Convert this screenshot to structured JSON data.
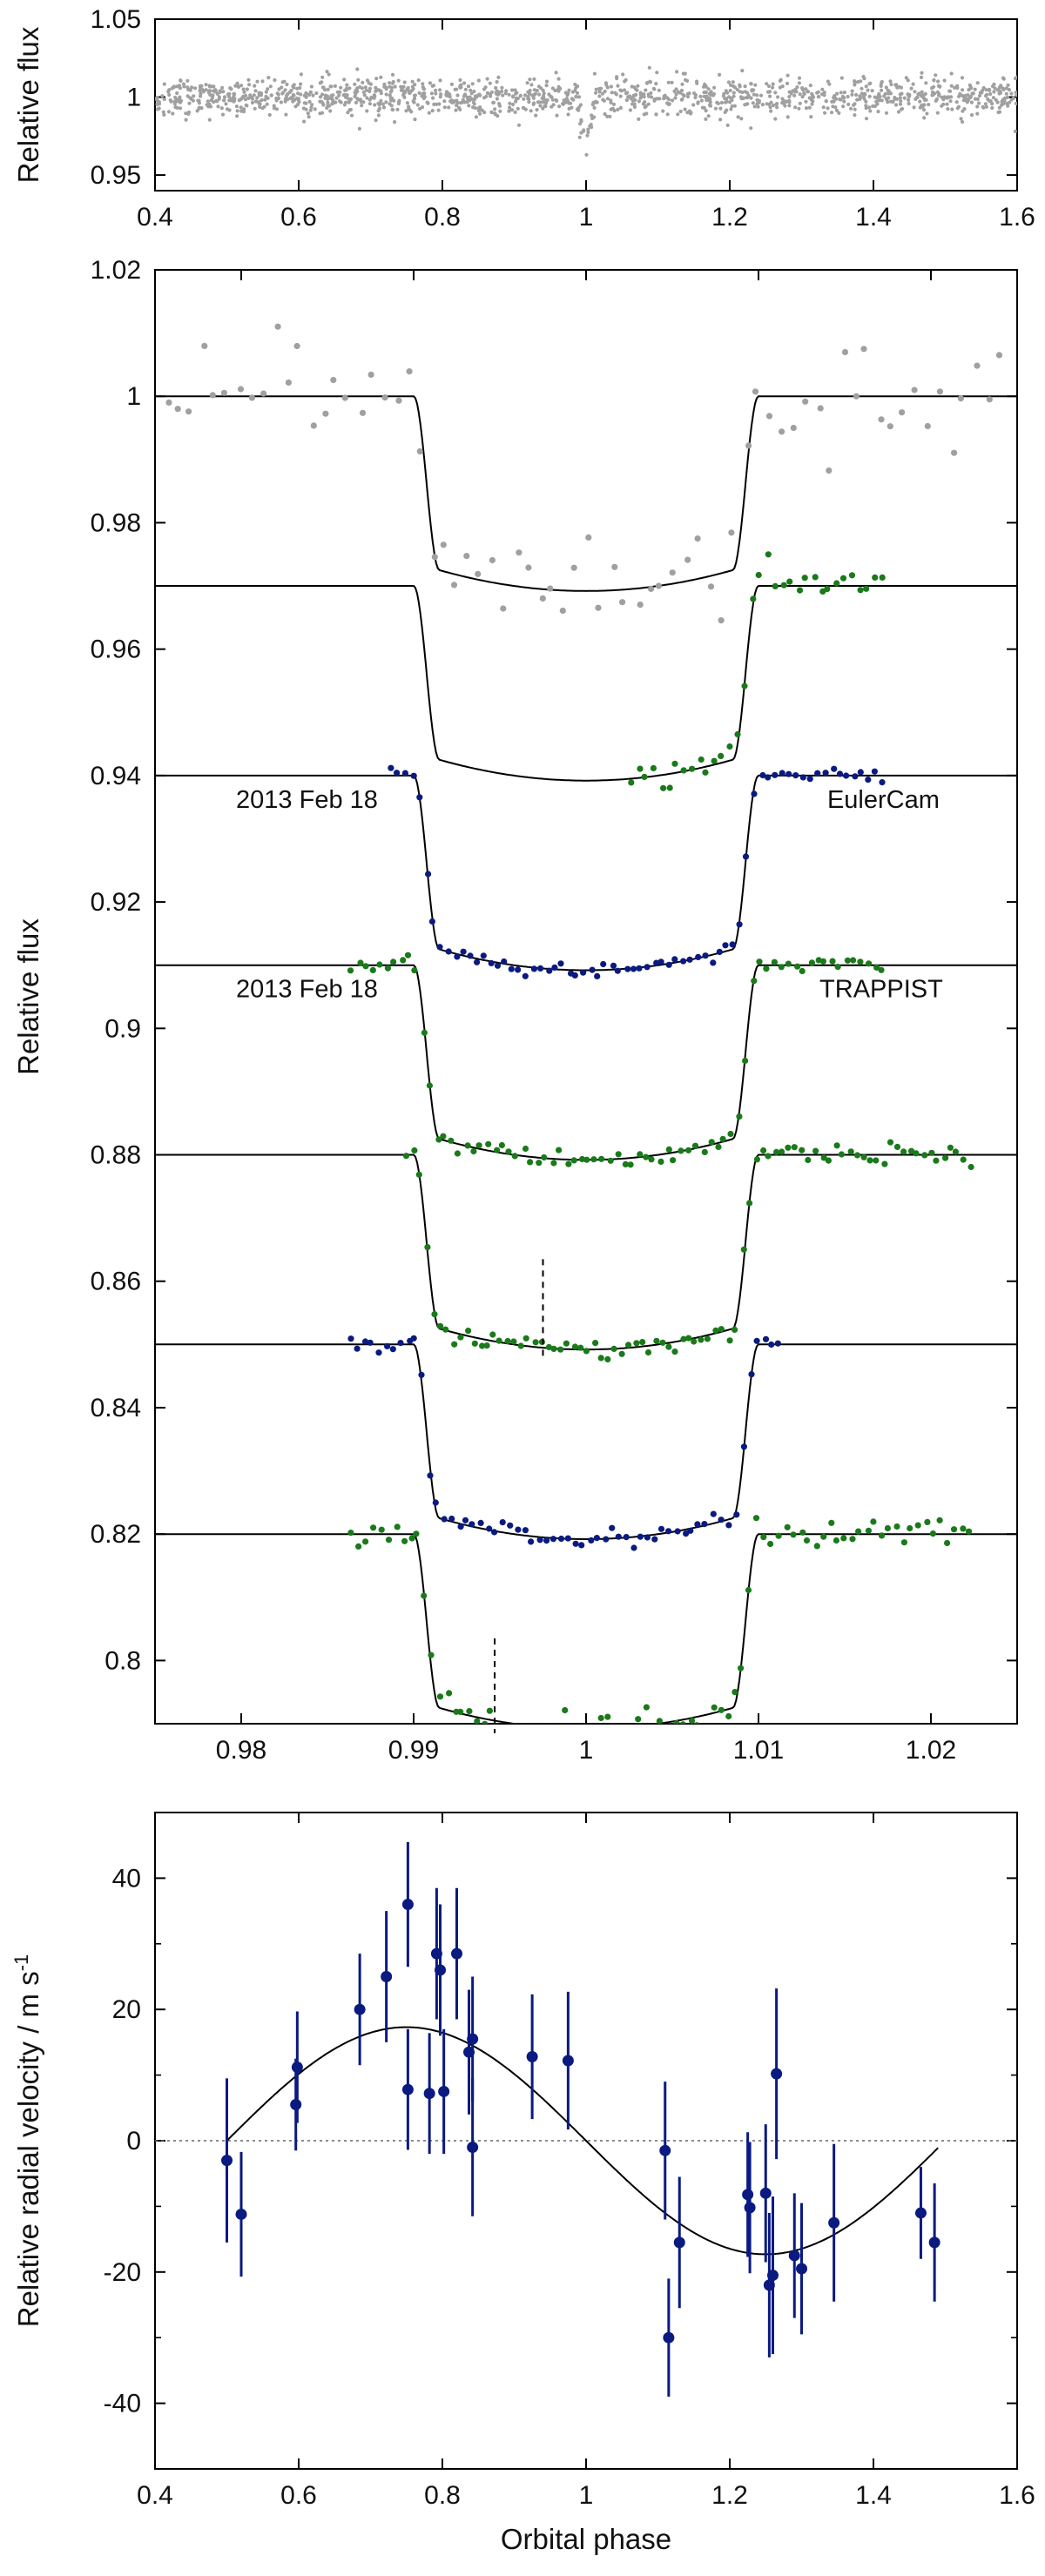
{
  "chart_data": [
    {
      "type": "scatter",
      "panel": "top",
      "xlabel": "",
      "ylabel": "Relative flux",
      "xlim": [
        0.4,
        1.6
      ],
      "ylim": [
        0.94,
        1.05
      ],
      "xticks": [
        0.4,
        0.6,
        0.8,
        1,
        1.2,
        1.4,
        1.6
      ],
      "xtick_labels": [
        "0.4",
        "0.6",
        "0.8",
        "1",
        "1.2",
        "1.4",
        "1.6"
      ],
      "yticks": [
        0.95,
        1,
        1.05
      ],
      "ytick_labels": [
        "0.95",
        "1",
        "1.05"
      ],
      "grid": false,
      "series": [
        {
          "kind": "points",
          "color": "#a0a0a0",
          "description_of_values": "dense photometry at flux ~1.000 with scatter ~0.006 across phase 0.4-1.6 and a narrow transit dip to ~0.97 at phase 1.0",
          "baseline": 1.0,
          "scatter": 0.006,
          "transit_center": 1.0,
          "transit_depth": 0.028,
          "x_start": 0.4,
          "x_end": 1.6,
          "count": 1400
        }
      ]
    },
    {
      "type": "line",
      "panel": "middle",
      "xlabel": "",
      "ylabel": "Relative flux",
      "xlim": [
        0.975,
        1.025
      ],
      "ylim": [
        0.79,
        1.02
      ],
      "xticks": [
        0.98,
        0.99,
        1,
        1.01,
        1.02
      ],
      "xtick_labels": [
        "0.98",
        "0.99",
        "1",
        "1.01",
        "1.02"
      ],
      "yticks": [
        0.8,
        0.82,
        0.84,
        0.86,
        0.88,
        0.9,
        0.92,
        0.94,
        0.96,
        0.98,
        1,
        1.02
      ],
      "ytick_labels": [
        "0.8",
        "0.82",
        "0.84",
        "0.86",
        "0.88",
        "0.9",
        "0.92",
        "0.94",
        "0.96",
        "0.98",
        "1",
        "1.02"
      ],
      "grid": false,
      "annotations": [
        {
          "text": "2013 Feb 18",
          "x": 0.9797,
          "y": 0.9349
        },
        {
          "text": "EulerCam",
          "x": 1.0205,
          "y": 0.9349
        },
        {
          "text": "2013 Feb 18",
          "x": 0.9797,
          "y": 0.9049
        },
        {
          "text": "TRAPPIST",
          "x": 1.0207,
          "y": 0.9049
        }
      ],
      "markers": [
        {
          "type": "dashed-vertical",
          "x": 0.9975,
          "y_range": [
            0.848,
            0.8635
          ]
        },
        {
          "type": "dashed-vertical",
          "x": 0.9947,
          "y_range": [
            0.7885,
            0.8035
          ]
        }
      ],
      "model": {
        "t1": 0.99,
        "t2": 0.9915,
        "t3": 1.0085,
        "t4": 1.01,
        "depth": 0.0275,
        "limb_darkening_extra": 0.0033
      },
      "series": [
        {
          "baseline": 1.0,
          "color": "#a0a0a0",
          "x_start": 0.9755,
          "x_end": 1.0245,
          "count": 70,
          "scatter": 0.0042
        },
        {
          "baseline": 0.97,
          "color": "#1a7a1a",
          "x_start": 1.0025,
          "x_end": 1.0175,
          "count": 34,
          "scatter": 0.0014
        },
        {
          "baseline": 0.94,
          "color": "#0a1a80",
          "x_start": 0.9886,
          "x_end": 1.0175,
          "count": 70,
          "scatter": 0.0006
        },
        {
          "baseline": 0.91,
          "color": "#1a7a1a",
          "x_start": 0.9863,
          "x_end": 1.0175,
          "count": 75,
          "scatter": 0.0007
        },
        {
          "baseline": 0.88,
          "color": "#1a7a1a",
          "x_start": 0.9895,
          "x_end": 1.0226,
          "count": 85,
          "scatter": 0.0008
        },
        {
          "baseline": 0.85,
          "color": "#0a1a80",
          "x_start": 0.9862,
          "x_end": 1.0115,
          "count": 60,
          "scatter": 0.0007
        },
        {
          "baseline": 0.82,
          "color": "#1a7a1a",
          "x_start": 0.9863,
          "x_end": 1.0226,
          "count": 85,
          "scatter": 0.0013
        }
      ]
    },
    {
      "type": "scatter",
      "panel": "bottom",
      "xlabel": "Orbital phase",
      "ylabel": "Relative radial velocity / m s",
      "ylabel_superscript": "-1",
      "xlim": [
        0.4,
        1.6
      ],
      "ylim": [
        -50,
        50
      ],
      "xticks": [
        0.4,
        0.6,
        0.8,
        1,
        1.2,
        1.4,
        1.6
      ],
      "xtick_labels": [
        "0.4",
        "0.6",
        "0.8",
        "1",
        "1.2",
        "1.4",
        "1.6"
      ],
      "yticks": [
        -40,
        -20,
        0,
        20,
        40
      ],
      "ytick_labels": [
        "-40",
        "-20",
        "0",
        "20",
        "40"
      ],
      "grid": false,
      "zero_line": "dotted",
      "model": {
        "type": "sinusoid",
        "amplitude": 17.3,
        "peak_phase": 0.75,
        "x_start": 0.5,
        "x_end": 1.49
      },
      "series": [
        {
          "kind": "points-with-errorbars",
          "color": "#0a1a80",
          "points": [
            {
              "x": 0.5,
              "y": -3,
              "err": 12.5
            },
            {
              "x": 0.52,
              "y": -11.2,
              "err": 9.5
            },
            {
              "x": 0.596,
              "y": 5.5,
              "err": 7
            },
            {
              "x": 0.598,
              "y": 11.2,
              "err": 8.5
            },
            {
              "x": 0.685,
              "y": 20,
              "err": 8.5
            },
            {
              "x": 0.722,
              "y": 25,
              "err": 10
            },
            {
              "x": 0.752,
              "y": 36,
              "err": 9.5
            },
            {
              "x": 0.752,
              "y": 7.8,
              "err": 9.2
            },
            {
              "x": 0.782,
              "y": 7.2,
              "err": 9.2
            },
            {
              "x": 0.792,
              "y": 28.5,
              "err": 10
            },
            {
              "x": 0.797,
              "y": 26,
              "err": 10
            },
            {
              "x": 0.802,
              "y": 7.5,
              "err": 9.5
            },
            {
              "x": 0.82,
              "y": 28.5,
              "err": 10
            },
            {
              "x": 0.837,
              "y": 13.5,
              "err": 9.5
            },
            {
              "x": 0.842,
              "y": 15.5,
              "err": 9.5
            },
            {
              "x": 0.842,
              "y": -1,
              "err": 10.5
            },
            {
              "x": 0.925,
              "y": 12.8,
              "err": 9.5
            },
            {
              "x": 0.975,
              "y": 12.2,
              "err": 10.5
            },
            {
              "x": 1.11,
              "y": -1.5,
              "err": 10.5
            },
            {
              "x": 1.115,
              "y": -30,
              "err": 9
            },
            {
              "x": 1.13,
              "y": -15.5,
              "err": 10
            },
            {
              "x": 1.225,
              "y": -8.2,
              "err": 9.5
            },
            {
              "x": 1.228,
              "y": -10.2,
              "err": 10
            },
            {
              "x": 1.25,
              "y": -8,
              "err": 10.5
            },
            {
              "x": 1.255,
              "y": -22,
              "err": 11
            },
            {
              "x": 1.26,
              "y": -20.5,
              "err": 12
            },
            {
              "x": 1.265,
              "y": 10.2,
              "err": 13
            },
            {
              "x": 1.29,
              "y": -17.5,
              "err": 9.5
            },
            {
              "x": 1.3,
              "y": -19.5,
              "err": 10
            },
            {
              "x": 1.345,
              "y": -12.5,
              "err": 12
            },
            {
              "x": 1.466,
              "y": -11,
              "err": 7
            },
            {
              "x": 1.485,
              "y": -15.5,
              "err": 9
            }
          ]
        }
      ]
    }
  ]
}
